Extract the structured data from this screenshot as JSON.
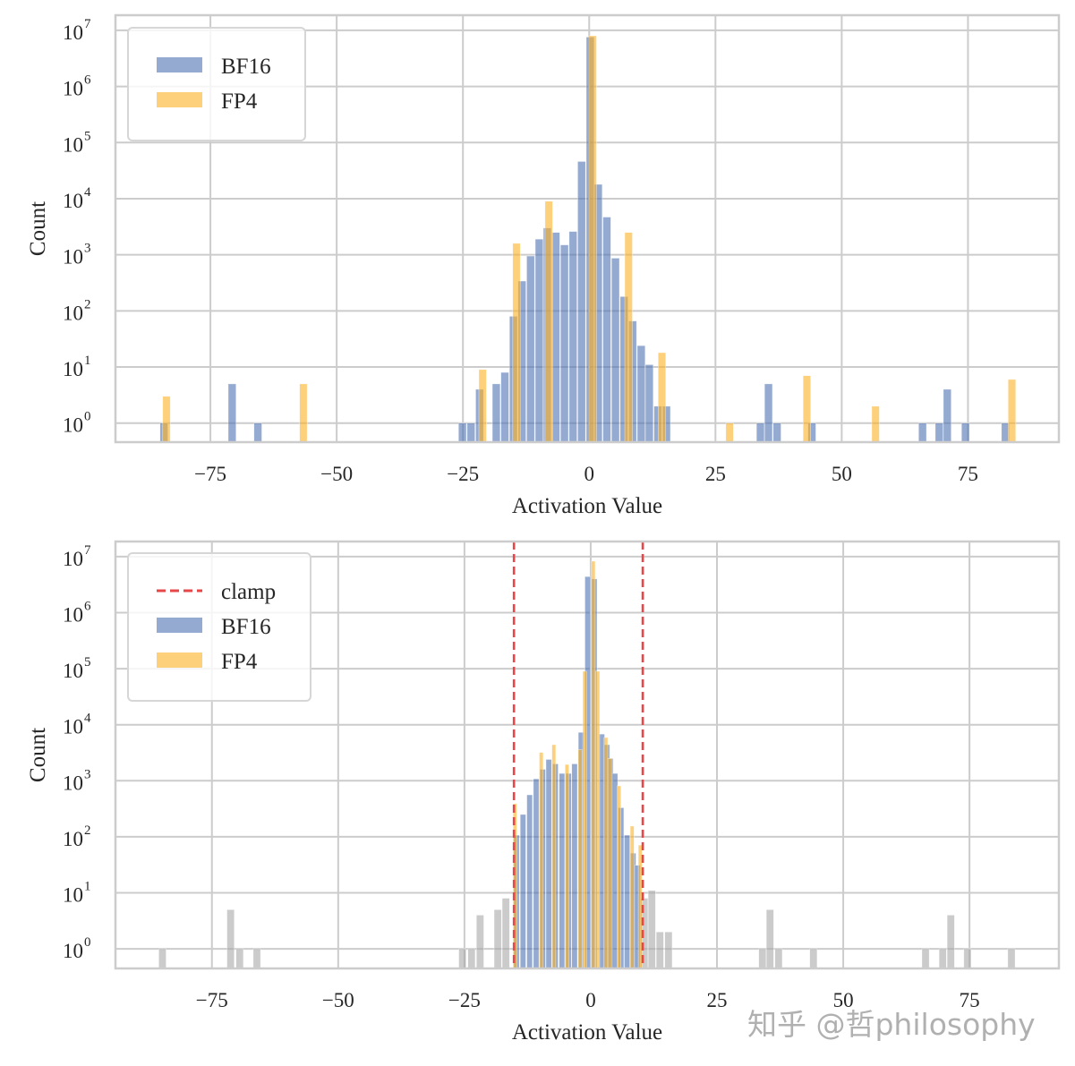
{
  "chart_data": [
    {
      "type": "bar",
      "histogram": true,
      "xlabel": "Activation Value",
      "ylabel": "Count",
      "xlim": [
        -93.8,
        93
      ],
      "ylim_log10": [
        -0.34,
        7.27
      ],
      "yscale": "log",
      "grid": true,
      "xticks": [
        -75,
        -50,
        -25,
        0,
        25,
        50,
        75
      ],
      "xtick_labels": [
        "−75",
        "−50",
        "−25",
        "0",
        "25",
        "50",
        "75"
      ],
      "ytick_base": "10",
      "ytick_exponents": [
        "0",
        "1",
        "2",
        "3",
        "4",
        "5",
        "6",
        "7"
      ],
      "legend": {
        "placement": "upper-left",
        "entries": [
          {
            "kind": "patch",
            "label": "BF16",
            "color": "#4c72b0"
          },
          {
            "kind": "patch",
            "label": "FP4",
            "color": "#fbb024"
          }
        ]
      },
      "series": [
        {
          "name": "BF16",
          "color": "#4c72b0",
          "bin_width": 1.55,
          "bins": [
            [
              -84.2,
              1
            ],
            [
              -70.7,
              5
            ],
            [
              -65.6,
              1
            ],
            [
              -25.1,
              1
            ],
            [
              -23.4,
              1
            ],
            [
              -21.7,
              4
            ],
            [
              -18.4,
              5
            ],
            [
              -16.7,
              8
            ],
            [
              -15.0,
              80
            ],
            [
              -13.3,
              340
            ],
            [
              -11.6,
              950
            ],
            [
              -9.9,
              1900
            ],
            [
              -8.3,
              3000
            ],
            [
              -6.6,
              2500
            ],
            [
              -4.9,
              1500
            ],
            [
              -3.2,
              2600
            ],
            [
              -1.5,
              46000
            ],
            [
              0.2,
              7600000
            ],
            [
              1.8,
              18000
            ],
            [
              3.5,
              4700
            ],
            [
              5.2,
              870
            ],
            [
              6.9,
              180
            ],
            [
              8.6,
              66
            ],
            [
              10.3,
              24
            ],
            [
              11.9,
              11
            ],
            [
              13.6,
              2
            ],
            [
              15.3,
              2
            ],
            [
              33.9,
              1
            ],
            [
              35.5,
              5
            ],
            [
              37.2,
              1
            ],
            [
              44.1,
              1
            ],
            [
              66.0,
              1
            ],
            [
              69.3,
              1
            ],
            [
              70.9,
              4
            ],
            [
              74.5,
              1
            ],
            [
              82.4,
              1
            ]
          ]
        },
        {
          "name": "FP4",
          "color": "#fbb024",
          "bin_width": 1.5,
          "bins": [
            [
              -83.7,
              3
            ],
            [
              -56.6,
              5
            ],
            [
              -21.1,
              9
            ],
            [
              -14.4,
              1600
            ],
            [
              -8.0,
              9000
            ],
            [
              0.7,
              8000000
            ],
            [
              7.8,
              2500
            ],
            [
              14.4,
              18
            ],
            [
              27.8,
              1
            ],
            [
              43.1,
              7
            ],
            [
              56.7,
              2
            ],
            [
              83.7,
              6
            ]
          ]
        }
      ]
    },
    {
      "type": "bar",
      "histogram": true,
      "xlabel": "Activation Value",
      "ylabel": "Count",
      "xlim": [
        -94.1,
        92.7
      ],
      "ylim_log10": [
        -0.35,
        7.27
      ],
      "yscale": "log",
      "grid": true,
      "xticks": [
        -75,
        -50,
        -25,
        0,
        25,
        50,
        75
      ],
      "xtick_labels": [
        "−75",
        "−50",
        "−25",
        "0",
        "25",
        "50",
        "75"
      ],
      "ytick_base": "10",
      "ytick_exponents": [
        "0",
        "1",
        "2",
        "3",
        "4",
        "5",
        "6",
        "7"
      ],
      "clamp": {
        "label": "clamp",
        "values": [
          -15.2,
          10.3
        ],
        "color": "#e8474a",
        "style": "dashed"
      },
      "legend": {
        "placement": "upper-left",
        "entries": [
          {
            "kind": "line",
            "label": "clamp",
            "color": "#e8474a"
          },
          {
            "kind": "patch",
            "label": "BF16",
            "color": "#4c72b0"
          },
          {
            "kind": "patch",
            "label": "FP4",
            "color": "#fbb024"
          }
        ]
      },
      "series": [
        {
          "role": "outside-clamp",
          "color": "#a8a8a8",
          "bin_width": 1.45,
          "bins": [
            [
              -84.8,
              1
            ],
            [
              -71.3,
              5
            ],
            [
              -69.5,
              1
            ],
            [
              -66.1,
              1
            ],
            [
              -25.4,
              1
            ],
            [
              -23.6,
              1
            ],
            [
              -21.9,
              4
            ],
            [
              -18.4,
              5
            ],
            [
              -16.8,
              8
            ],
            [
              10.6,
              8
            ],
            [
              12.1,
              11
            ],
            [
              13.7,
              2
            ],
            [
              15.4,
              2
            ],
            [
              34.0,
              1
            ],
            [
              35.5,
              5
            ],
            [
              37.2,
              1
            ],
            [
              44.1,
              1
            ],
            [
              66.3,
              1
            ],
            [
              69.7,
              1
            ],
            [
              71.3,
              4
            ],
            [
              74.6,
              1
            ],
            [
              83.3,
              1
            ]
          ]
        },
        {
          "name": "BF16",
          "color": "#4c72b0",
          "bin_width": 1.1,
          "bins": [
            [
              -14.7,
              107
            ],
            [
              -13.4,
              250
            ],
            [
              -12.1,
              560
            ],
            [
              -10.8,
              1080
            ],
            [
              -9.5,
              1600
            ],
            [
              -8.3,
              2400
            ],
            [
              -7.0,
              2000
            ],
            [
              -5.7,
              1350
            ],
            [
              -4.4,
              1350
            ],
            [
              -3.2,
              2000
            ],
            [
              -1.9,
              7300
            ],
            [
              -0.6,
              4400000
            ],
            [
              0.7,
              4000000
            ],
            [
              2.2,
              6800
            ],
            [
              3.2,
              4400
            ],
            [
              3.9,
              2500
            ],
            [
              4.8,
              1350
            ],
            [
              6.0,
              330
            ],
            [
              7.2,
              107
            ],
            [
              8.4,
              51
            ],
            [
              9.3,
              31
            ]
          ]
        },
        {
          "name": "FP4",
          "color": "#fbb024",
          "bin_width": 0.75,
          "bins": [
            [
              -15.0,
              390
            ],
            [
              -9.8,
              3200
            ],
            [
              -7.3,
              4400
            ],
            [
              -4.7,
              1950
            ],
            [
              -2.1,
              3600
            ],
            [
              -1.2,
              90000
            ],
            [
              0.5,
              8300000
            ],
            [
              1.4,
              90000
            ],
            [
              3.0,
              5900
            ],
            [
              3.9,
              2500
            ],
            [
              5.6,
              810
            ],
            [
              8.2,
              155
            ],
            [
              9.8,
              71
            ]
          ]
        }
      ]
    }
  ],
  "watermark": "知乎 @哲philosophy"
}
